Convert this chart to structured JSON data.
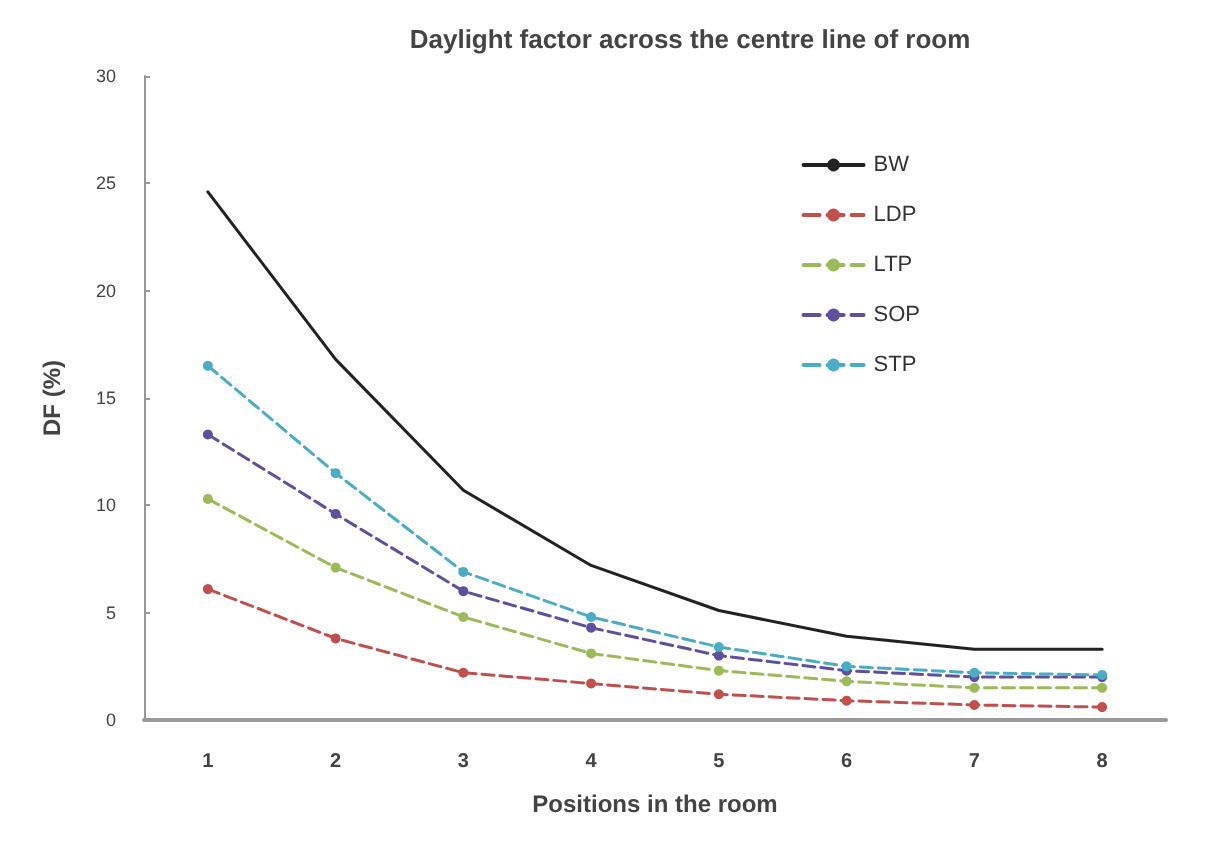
{
  "chart_data": {
    "type": "line",
    "title": "Daylight factor across the centre line of room",
    "xlabel": "Positions in the room",
    "ylabel": "DF (%)",
    "categories": [
      "1",
      "2",
      "3",
      "4",
      "5",
      "6",
      "7",
      "8"
    ],
    "series": [
      {
        "name": "BW",
        "color": "#222222",
        "marker": "none",
        "line_style": "solid",
        "values": [
          24.6,
          16.8,
          10.7,
          7.2,
          5.1,
          3.9,
          3.3,
          3.3
        ]
      },
      {
        "name": "LDP",
        "color": "#c0504d",
        "values": [
          6.1,
          3.8,
          2.2,
          1.7,
          1.2,
          0.9,
          0.7,
          0.6
        ]
      },
      {
        "name": "LTP",
        "color": "#9bbb59",
        "values": [
          10.3,
          7.1,
          4.8,
          3.1,
          2.3,
          1.8,
          1.5,
          1.5
        ]
      },
      {
        "name": "SOP",
        "color": "#5f4f9f",
        "values": [
          13.3,
          9.6,
          6.0,
          4.3,
          3.0,
          2.3,
          2.0,
          2.0
        ]
      },
      {
        "name": "STP",
        "color": "#4bacc6",
        "values": [
          16.5,
          11.5,
          6.9,
          4.8,
          3.4,
          2.5,
          2.2,
          2.1
        ]
      }
    ],
    "ylim": [
      0,
      30
    ],
    "yticks": [
      0,
      5,
      10,
      15,
      20,
      25,
      30
    ],
    "grid": false,
    "legend": "top right",
    "marker": "circle",
    "line_style": "dashed"
  }
}
